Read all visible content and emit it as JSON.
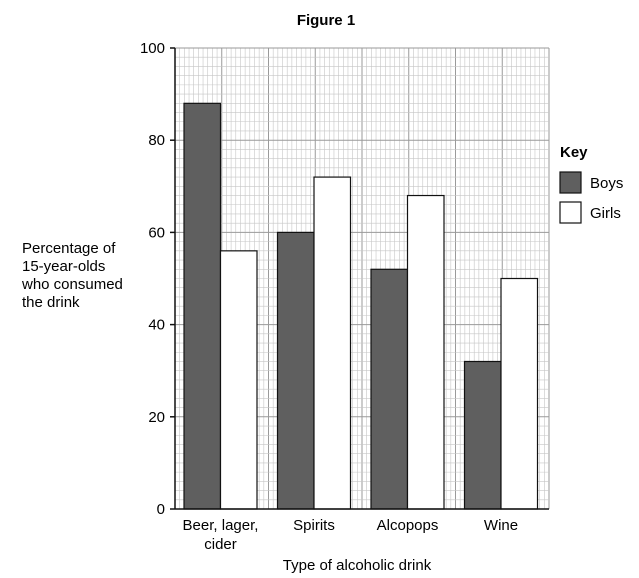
{
  "figure_title": "Figure 1",
  "key": {
    "title": "Key",
    "items": [
      "Boys",
      "Girls"
    ]
  },
  "colors": {
    "boys": "#5f5f5f",
    "girls": "#ffffff",
    "grid_major": "#9a9a9a",
    "grid_minor": "#c6c6c6",
    "axis": "#111111"
  },
  "chart_data": {
    "type": "bar",
    "title": "Figure 1",
    "xlabel": "Type of alcoholic drink",
    "ylabel_lines": [
      "Percentage of",
      "15-year-olds",
      "who consumed",
      "the drink"
    ],
    "categories": [
      [
        "Beer, lager,",
        "cider"
      ],
      [
        "Spirits"
      ],
      [
        "Alcopops"
      ],
      [
        "Wine"
      ]
    ],
    "series": [
      {
        "name": "Boys",
        "values": [
          88,
          60,
          52,
          32
        ]
      },
      {
        "name": "Girls",
        "values": [
          56,
          72,
          68,
          50
        ]
      }
    ],
    "ylim": [
      0,
      100
    ],
    "yticks": [
      0,
      20,
      40,
      60,
      80,
      100
    ],
    "grid": true,
    "legend": "right"
  }
}
